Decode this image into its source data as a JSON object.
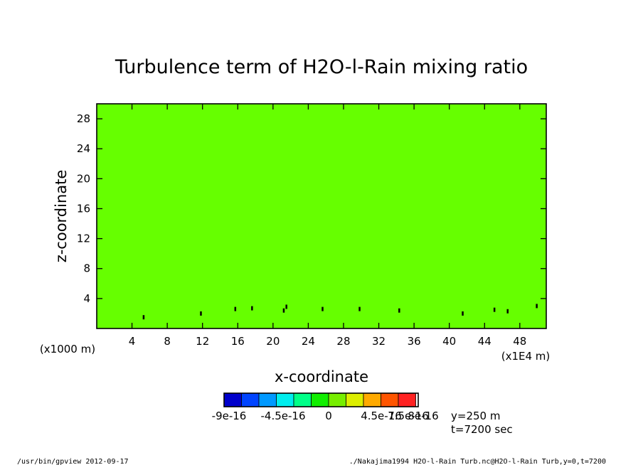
{
  "chart_data": {
    "type": "heatmap",
    "title": "Turbulence term of H2O-l-Rain mixing ratio",
    "xlabel": "x-coordinate",
    "ylabel": "z-coordinate",
    "xlim": [
      0,
      51
    ],
    "ylim": [
      0,
      30
    ],
    "x_ticks": [
      4,
      8,
      12,
      16,
      20,
      24,
      28,
      32,
      36,
      40,
      44,
      48
    ],
    "y_ticks": [
      4,
      8,
      12,
      16,
      20,
      24,
      28
    ],
    "x_scale_note": "(x1E4 m)",
    "y_scale_note": "(x1000 m)",
    "field_value": 0,
    "field_color": "#66ff00",
    "contour_marks": [
      {
        "x": 5.3,
        "z": 1.5
      },
      {
        "x": 11.8,
        "z": 2.0
      },
      {
        "x": 15.7,
        "z": 2.6
      },
      {
        "x": 17.6,
        "z": 2.7
      },
      {
        "x": 21.2,
        "z": 2.4
      },
      {
        "x": 21.5,
        "z": 2.9
      },
      {
        "x": 25.6,
        "z": 2.6
      },
      {
        "x": 29.8,
        "z": 2.6
      },
      {
        "x": 34.3,
        "z": 2.4
      },
      {
        "x": 41.5,
        "z": 2.0
      },
      {
        "x": 45.1,
        "z": 2.5
      },
      {
        "x": 46.6,
        "z": 2.3
      },
      {
        "x": 49.9,
        "z": 3.0
      }
    ],
    "colorbar": {
      "levels": [
        -9e-16,
        -7.5e-16,
        -6e-16,
        -4.5e-16,
        -3e-16,
        -1.5e-16,
        0,
        1.5e-16,
        3e-16,
        4.5e-16,
        6e-16,
        7.5e-16
      ],
      "colors": [
        "#0000cc",
        "#0044ff",
        "#0099ff",
        "#00eeee",
        "#00ff88",
        "#11ee00",
        "#77ee00",
        "#ddee00",
        "#ffaa00",
        "#ff5500",
        "#ff2222"
      ],
      "labels": [
        "-9e-16",
        "-4.5e-16",
        "0",
        "4.5e-16",
        "7.5e-16",
        "8e-16"
      ]
    },
    "annotations": [
      "y=250 m",
      "t=7200 sec"
    ]
  },
  "footer": {
    "left": "/usr/bin/gpview   2012-09-17",
    "right": "./Nakajima1994_H2O-l-Rain_Turb.nc@H2O-l-Rain_Turb,y=0,t=7200"
  }
}
